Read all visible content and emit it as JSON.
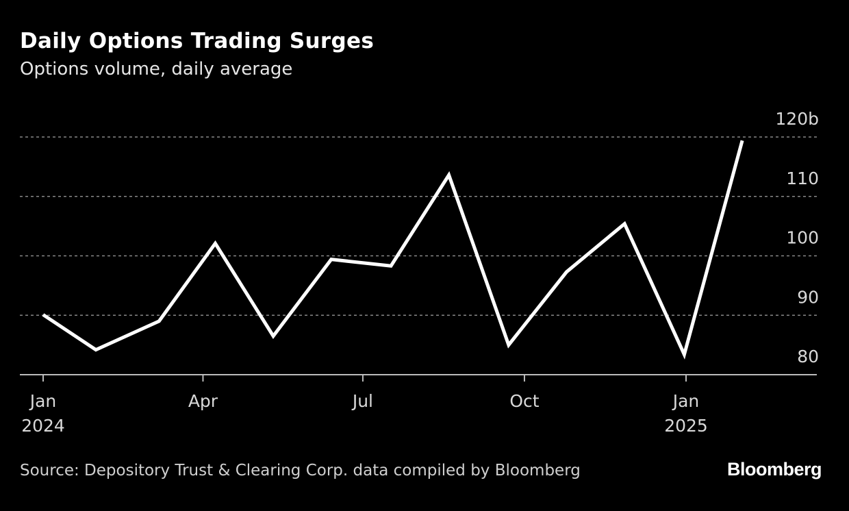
{
  "header": {
    "title": "Daily Options Trading Surges",
    "subtitle": "Options volume, daily average"
  },
  "footer": {
    "source": "Source: Depository Trust & Clearing Corp. data compiled by Bloomberg",
    "logo": "Bloomberg"
  },
  "colors": {
    "background": "#000000",
    "line": "#ffffff",
    "grid": "#888888"
  },
  "chart_data": {
    "type": "line",
    "title": "Daily Options Trading Surges",
    "subtitle": "Options volume, daily average",
    "x": [
      "2024-01-01",
      "2024-01-31",
      "2024-03-07",
      "2024-04-08",
      "2024-05-11",
      "2024-06-13",
      "2024-07-17",
      "2024-08-19",
      "2024-09-22",
      "2024-10-25",
      "2024-11-27",
      "2024-12-31",
      "2025-02-02"
    ],
    "values": [
      90.1,
      84.2,
      89.0,
      102.1,
      86.5,
      99.4,
      98.3,
      113.6,
      85.0,
      97.3,
      105.4,
      83.4,
      119.4
    ],
    "ylim": [
      80,
      120
    ],
    "yticks": [
      80,
      90,
      100,
      110,
      120
    ],
    "ytick_labels": [
      "80",
      "90",
      "100",
      "110",
      "120b"
    ],
    "xticks": [
      {
        "date": "2024-01-01",
        "label": "Jan",
        "sublabel": "2024"
      },
      {
        "date": "2024-04-01",
        "label": "Apr",
        "sublabel": ""
      },
      {
        "date": "2024-07-01",
        "label": "Jul",
        "sublabel": ""
      },
      {
        "date": "2024-10-01",
        "label": "Oct",
        "sublabel": ""
      },
      {
        "date": "2025-01-01",
        "label": "Jan",
        "sublabel": "2025"
      }
    ],
    "y_axis_position": "right",
    "grid": "horizontal-dotted",
    "legend": "none"
  }
}
